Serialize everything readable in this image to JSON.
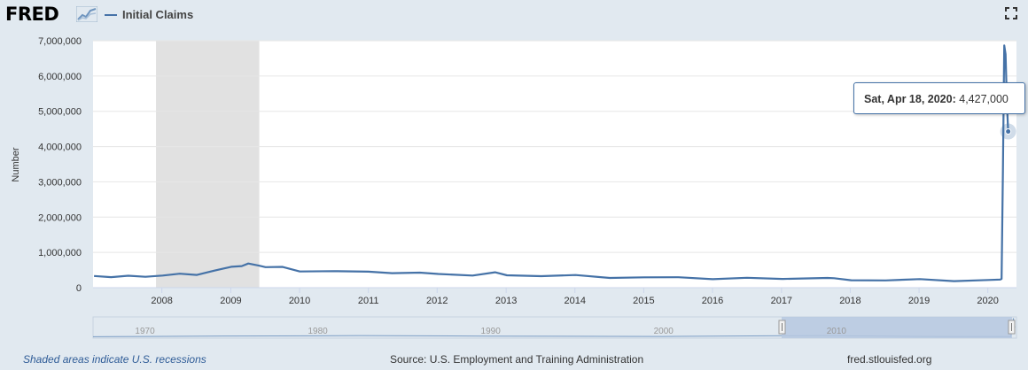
{
  "header": {
    "logo_text": "FRED",
    "logo_icon": "chart-line-icon",
    "legend_label": "Initial Claims",
    "fullscreen_icon": "fullscreen-icon"
  },
  "tooltip": {
    "date": "Sat, Apr 18, 2020:",
    "value": "4,427,000"
  },
  "footer": {
    "recession_note": "Shaded areas indicate U.S. recessions",
    "source": "Source: U.S. Employment and Training Administration",
    "site": "fred.stlouisfed.org"
  },
  "navigator": {
    "labels": [
      "1970",
      "1980",
      "1990",
      "2000",
      "2010"
    ]
  },
  "colors": {
    "series": "#4572a7",
    "recession": "#e1e1e1",
    "background": "#e1e9f0",
    "plot": "#ffffff"
  },
  "chart_data": {
    "type": "line",
    "title": "",
    "ylabel": "Number",
    "ylim": [
      0,
      7000000
    ],
    "xlim": [
      "2007-01-01",
      "2020-06-01"
    ],
    "ytick_values": [
      0,
      1000000,
      2000000,
      3000000,
      4000000,
      5000000,
      6000000,
      7000000
    ],
    "ytick_labels": [
      "0",
      "1,000,000",
      "2,000,000",
      "3,000,000",
      "4,000,000",
      "5,000,000",
      "6,000,000",
      "7,000,000"
    ],
    "xtick_labels": [
      "2008",
      "2009",
      "2010",
      "2011",
      "2012",
      "2013",
      "2014",
      "2015",
      "2016",
      "2017",
      "2018",
      "2019",
      "2020"
    ],
    "grid": true,
    "recessions": [
      {
        "start": "2007-12-01",
        "end": "2009-06-01"
      }
    ],
    "series": [
      {
        "name": "Initial Claims",
        "points": [
          [
            "2007-01-06",
            330000
          ],
          [
            "2007-04-07",
            320000
          ],
          [
            "2007-07-07",
            310000
          ],
          [
            "2007-10-06",
            325000
          ],
          [
            "2008-01-05",
            350000
          ],
          [
            "2008-04-05",
            370000
          ],
          [
            "2008-07-05",
            390000
          ],
          [
            "2008-10-04",
            470000
          ],
          [
            "2009-01-03",
            580000
          ],
          [
            "2009-02-28",
            640000
          ],
          [
            "2009-04-04",
            660000
          ],
          [
            "2009-05-30",
            630000
          ],
          [
            "2009-07-04",
            600000
          ],
          [
            "2009-10-03",
            560000
          ],
          [
            "2010-01-02",
            480000
          ],
          [
            "2010-07-03",
            470000
          ],
          [
            "2011-01-01",
            430000
          ],
          [
            "2011-05-07",
            440000
          ],
          [
            "2011-10-01",
            410000
          ],
          [
            "2012-01-07",
            380000
          ],
          [
            "2012-07-07",
            370000
          ],
          [
            "2012-11-03",
            410000
          ],
          [
            "2013-01-05",
            360000
          ],
          [
            "2013-07-06",
            340000
          ],
          [
            "2014-01-04",
            330000
          ],
          [
            "2014-07-05",
            300000
          ],
          [
            "2015-01-03",
            290000
          ],
          [
            "2015-07-04",
            275000
          ],
          [
            "2016-01-02",
            270000
          ],
          [
            "2016-07-02",
            260000
          ],
          [
            "2017-01-07",
            245000
          ],
          [
            "2017-09-02",
            300000
          ],
          [
            "2017-10-07",
            240000
          ],
          [
            "2018-01-06",
            225000
          ],
          [
            "2018-07-07",
            215000
          ],
          [
            "2019-01-05",
            215000
          ],
          [
            "2019-07-06",
            212000
          ],
          [
            "2020-01-04",
            210000
          ],
          [
            "2020-03-07",
            215000
          ],
          [
            "2020-03-14",
            251000
          ],
          [
            "2020-03-21",
            3307000
          ],
          [
            "2020-03-28",
            6867000
          ],
          [
            "2020-04-04",
            6615000
          ],
          [
            "2020-04-11",
            5237000
          ],
          [
            "2020-04-18",
            4427000
          ]
        ]
      }
    ],
    "highlight": {
      "date": "2020-04-18",
      "value": 4427000
    }
  }
}
